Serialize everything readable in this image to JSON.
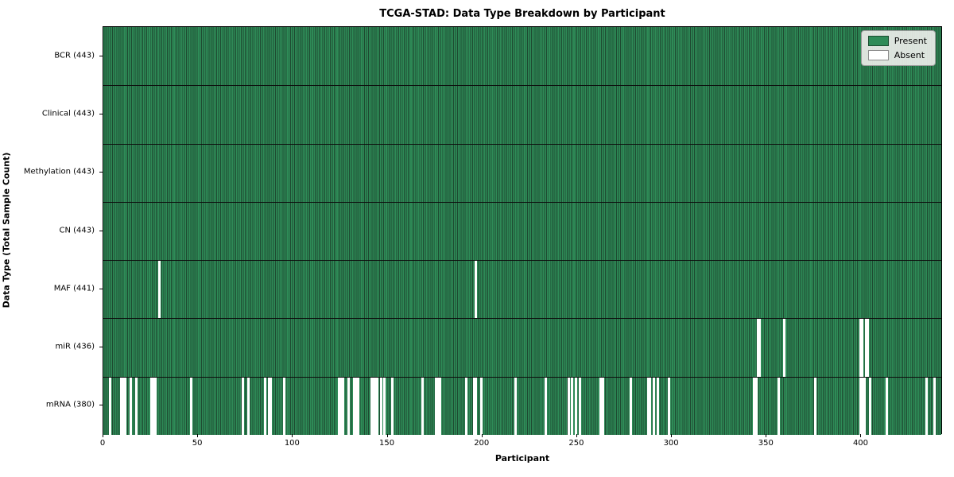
{
  "figure": {
    "title": "TCGA-STAD: Data Type Breakdown by Participant",
    "xlabel": "Participant",
    "ylabel": "Data Type (Total Sample Count)"
  },
  "legend": {
    "items": [
      {
        "label": "Present",
        "color": "#2e8b57"
      },
      {
        "label": "Absent",
        "color": "#ffffff"
      }
    ]
  },
  "chart_data": {
    "type": "heatmap",
    "title": "TCGA-STAD: Data Type Breakdown by Participant",
    "xlabel": "Participant",
    "ylabel": "Data Type (Total Sample Count)",
    "legend": [
      "Present",
      "Absent"
    ],
    "colors": {
      "present": "#2e8b57",
      "absent": "#ffffff",
      "bar_edge": "#1e4a31"
    },
    "n_participants": 443,
    "xlim": [
      0,
      443
    ],
    "x_ticks": [
      0,
      50,
      100,
      150,
      200,
      250,
      300,
      350,
      400
    ],
    "grid": false,
    "legend_position": "upper right",
    "rows": [
      {
        "label": "BCR (443)",
        "data_type": "BCR",
        "total_count": 443,
        "absent": []
      },
      {
        "label": "Clinical (443)",
        "data_type": "Clinical",
        "total_count": 443,
        "absent": []
      },
      {
        "label": "Methylation (443)",
        "data_type": "Methylation",
        "total_count": 443,
        "absent": []
      },
      {
        "label": "CN (443)",
        "data_type": "CN",
        "total_count": 443,
        "absent": []
      },
      {
        "label": "MAF (441)",
        "data_type": "MAF",
        "total_count": 441,
        "absent": [
          29,
          196
        ]
      },
      {
        "label": "miR (436)",
        "data_type": "miR",
        "total_count": 436,
        "absent": [
          345,
          346,
          359,
          399,
          400,
          402,
          403
        ]
      },
      {
        "label": "mRNA (380)",
        "data_type": "mRNA",
        "total_count": 380,
        "absent": [
          3,
          9,
          10,
          11,
          14,
          17,
          25,
          26,
          27,
          46,
          73,
          76,
          85,
          87,
          88,
          95,
          124,
          125,
          126,
          129,
          132,
          133,
          134,
          141,
          142,
          143,
          144,
          146,
          148,
          152,
          168,
          175,
          176,
          177,
          191,
          195,
          196,
          199,
          217,
          233,
          245,
          247,
          249,
          251,
          262,
          263,
          278,
          287,
          288,
          290,
          292,
          298,
          343,
          344,
          356,
          375,
          399,
          400,
          401,
          404,
          413,
          434,
          438
        ]
      }
    ]
  }
}
